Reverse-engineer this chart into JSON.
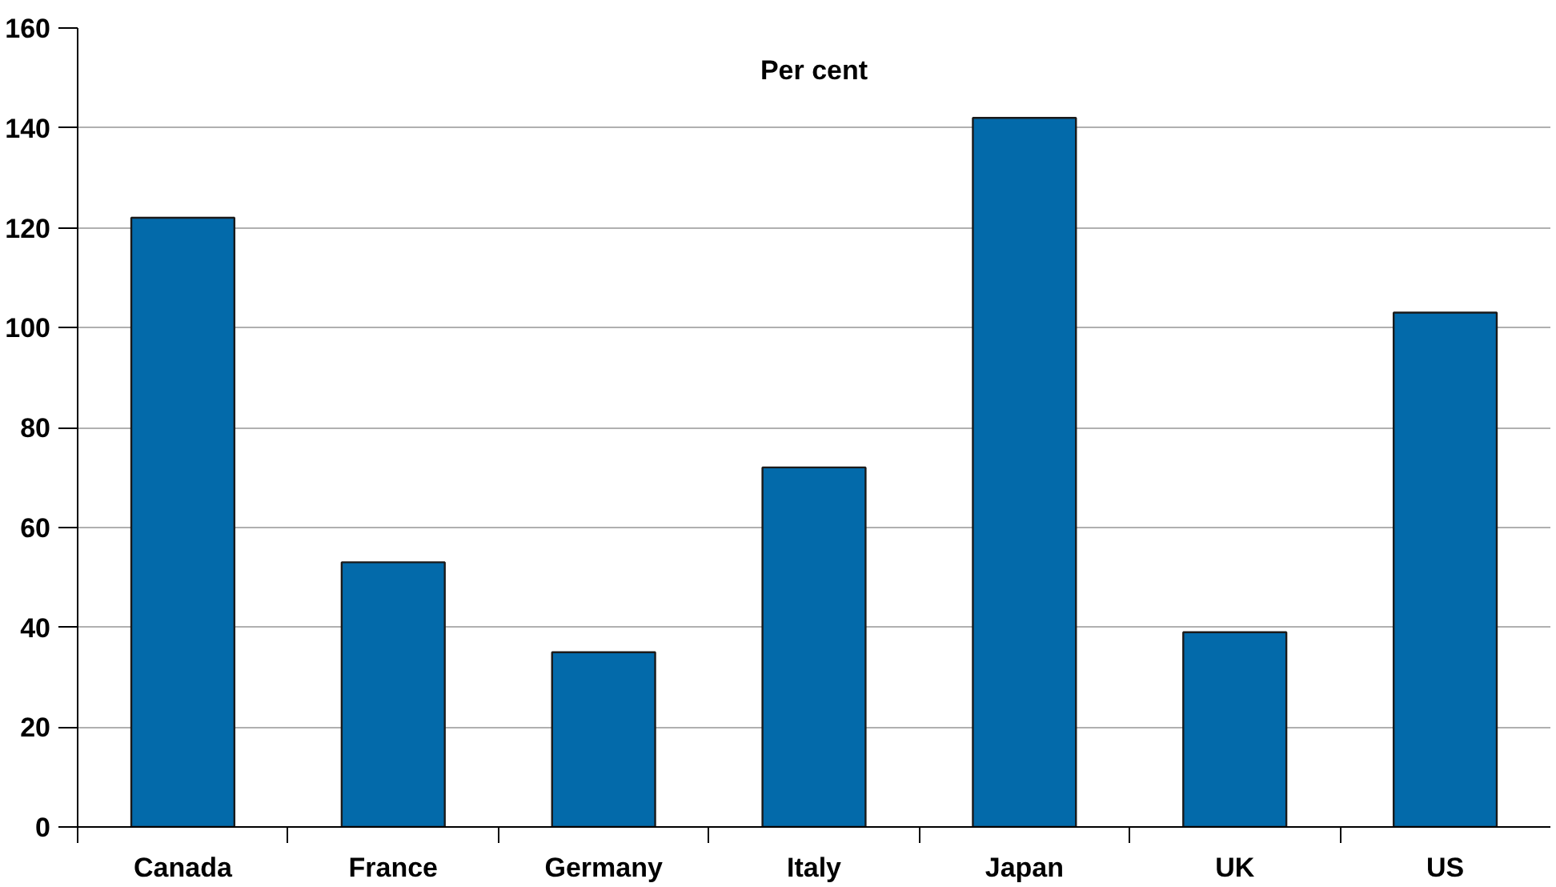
{
  "chart_data": {
    "type": "bar",
    "ylabel": "Per cent",
    "categories": [
      "Canada",
      "France",
      "Germany",
      "Italy",
      "Japan",
      "UK",
      "US"
    ],
    "values": [
      122,
      53,
      35,
      72,
      142,
      39,
      103
    ],
    "color": "#036aaa",
    "ylim": [
      0,
      160
    ],
    "yticks": [
      0,
      20,
      40,
      60,
      80,
      100,
      120,
      140,
      160
    ],
    "grid": "y"
  }
}
